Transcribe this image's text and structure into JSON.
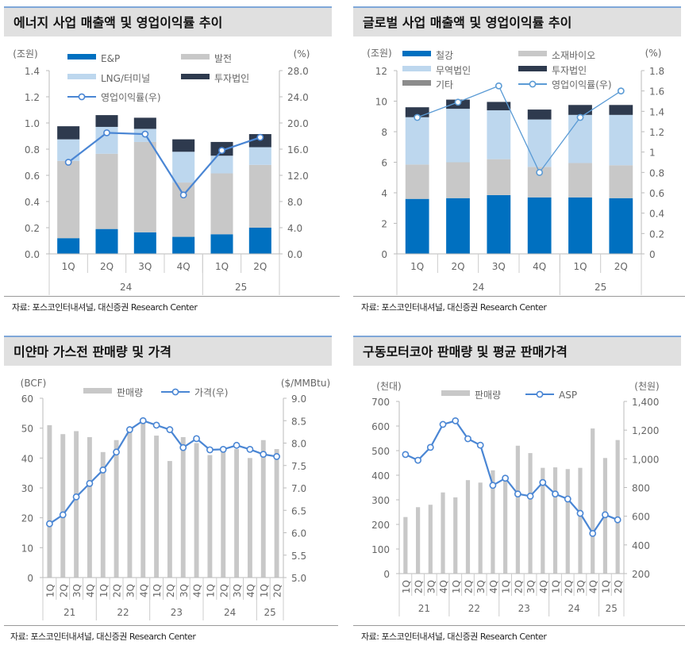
{
  "charts_meta": [
    {
      "title": "에너지 사업 매출액 및 영업이익률 추이",
      "source": "자료: 포스코인터내셔널, 대신증권 Research Center"
    },
    {
      "title": "글로벌 사업 매출액 및 영업이익률 추이",
      "source": "자료: 포스코인터내셔널, 대신증권 Research Center"
    },
    {
      "title": "미얀마 가스전 판매량 및 가격",
      "source": "자료: 포스코인터내셔널, 대신증권 Research Center"
    },
    {
      "title": "구동모터코아 판매량 및 평균 판매가격",
      "source": "자료: 포스코인터내셔널, 대신증권 Research Center"
    }
  ],
  "chart_data": [
    {
      "type": "bar",
      "stacked": true,
      "title": "에너지 사업 매출액 및 영업이익률 추이",
      "categories": [
        "1Q",
        "2Q",
        "3Q",
        "4Q",
        "1Q",
        "2Q"
      ],
      "groups": [
        {
          "label": "24",
          "count": 4
        },
        {
          "label": "25",
          "count": 2
        }
      ],
      "ylabel": "(조원)",
      "y2label": "(%)",
      "ylim": [
        0,
        1.4
      ],
      "y2lim": [
        0,
        28
      ],
      "yticks": [
        "0.0",
        "0.2",
        "0.4",
        "0.6",
        "0.8",
        "1.0",
        "1.2",
        "1.4"
      ],
      "y2ticks": [
        "0.0",
        "4.0",
        "8.0",
        "12.0",
        "16.0",
        "20.0",
        "24.0",
        "28.0"
      ],
      "series": [
        {
          "name": "E&P",
          "color": "#0070c0",
          "values": [
            0.12,
            0.19,
            0.165,
            0.13,
            0.15,
            0.2
          ]
        },
        {
          "name": "발전",
          "color": "#c8c8c8",
          "values": [
            0.59,
            0.575,
            0.69,
            0.415,
            0.465,
            0.48
          ]
        },
        {
          "name": "LNG/터미널",
          "color": "#bdd7ee",
          "values": [
            0.165,
            0.205,
            0.1,
            0.235,
            0.135,
            0.135
          ]
        },
        {
          "name": "투자법인",
          "color": "#2e3a4e",
          "values": [
            0.1,
            0.09,
            0.085,
            0.095,
            0.105,
            0.1
          ]
        }
      ],
      "line": {
        "name": "영업이익률(우)",
        "color": "#4a86d4",
        "values": [
          14.0,
          18.5,
          18.3,
          9.0,
          15.8,
          17.8
        ]
      },
      "legend": "top"
    },
    {
      "type": "bar",
      "stacked": true,
      "title": "글로벌 사업 매출액 및 영업이익률 추이",
      "categories": [
        "1Q",
        "2Q",
        "3Q",
        "4Q",
        "1Q",
        "2Q"
      ],
      "groups": [
        {
          "label": "24",
          "count": 4
        },
        {
          "label": "25",
          "count": 2
        }
      ],
      "ylabel": "(조원)",
      "y2label": "(%)",
      "ylim": [
        0,
        12
      ],
      "y2lim": [
        0,
        1.8
      ],
      "yticks": [
        "0",
        "2",
        "4",
        "6",
        "8",
        "10",
        "12"
      ],
      "y2ticks": [
        "0",
        "0.2",
        "0.4",
        "0.6",
        "0.8",
        "1",
        "1.2",
        "1.4",
        "1.6",
        "1.8"
      ],
      "series": [
        {
          "name": "철강",
          "color": "#0070c0",
          "values": [
            3.6,
            3.65,
            3.85,
            3.7,
            3.7,
            3.65
          ]
        },
        {
          "name": "소재바이오",
          "color": "#c8c8c8",
          "values": [
            2.25,
            2.35,
            2.35,
            2.0,
            2.25,
            2.15
          ]
        },
        {
          "name": "무역법인",
          "color": "#bdd7ee",
          "values": [
            3.1,
            3.5,
            3.2,
            3.1,
            3.15,
            3.3
          ]
        },
        {
          "name": "투자법인",
          "color": "#2e3a4e",
          "values": [
            0.65,
            0.6,
            0.55,
            0.65,
            0.65,
            0.65
          ]
        },
        {
          "name": "기타",
          "color": "#8c8c8c",
          "values": [
            0,
            0,
            0,
            0,
            0,
            0
          ]
        }
      ],
      "line": {
        "name": "영업이익률(우)",
        "color": "#5b9bd5",
        "values": [
          1.34,
          1.49,
          1.65,
          0.8,
          1.34,
          1.6
        ]
      },
      "legend": "top"
    },
    {
      "type": "bar",
      "title": "미얀마 가스전 판매량 및 가격",
      "categories": [
        "1Q",
        "2Q",
        "3Q",
        "4Q",
        "1Q",
        "2Q",
        "3Q",
        "4Q",
        "1Q",
        "2Q",
        "3Q",
        "4Q",
        "1Q",
        "2Q",
        "3Q",
        "4Q",
        "1Q",
        "2Q"
      ],
      "groups": [
        {
          "label": "21",
          "count": 4
        },
        {
          "label": "22",
          "count": 4
        },
        {
          "label": "23",
          "count": 4
        },
        {
          "label": "24",
          "count": 4
        },
        {
          "label": "25",
          "count": 2
        }
      ],
      "ylabel": "(BCF)",
      "y2label": "($/MMBtu)",
      "ylim": [
        0,
        60
      ],
      "y2lim": [
        5,
        9
      ],
      "yticks": [
        "0",
        "10",
        "20",
        "30",
        "40",
        "50",
        "60"
      ],
      "y2ticks": [
        "5.0",
        "5.5",
        "6.0",
        "6.5",
        "7.0",
        "7.5",
        "8.0",
        "8.5",
        "9.0"
      ],
      "series": [
        {
          "name": "판매량",
          "color": "#c8c8c8",
          "values": [
            51,
            48,
            49,
            47,
            42,
            46,
            49,
            52,
            47.5,
            39,
            47,
            45,
            41,
            43,
            43,
            40,
            46,
            43
          ]
        }
      ],
      "line": {
        "name": "가격(우)",
        "color": "#4a86d4",
        "values": [
          6.2,
          6.4,
          6.8,
          7.1,
          7.4,
          7.8,
          8.3,
          8.5,
          8.4,
          8.3,
          7.9,
          8.1,
          7.85,
          7.86,
          7.95,
          7.86,
          7.75,
          7.7
        ]
      },
      "legend": "top"
    },
    {
      "type": "bar",
      "title": "구동모터코아 판매량 및 평균 판매가격",
      "categories": [
        "1Q",
        "2Q",
        "3Q",
        "4Q",
        "1Q",
        "2Q",
        "3Q",
        "4Q",
        "1Q",
        "2Q",
        "3Q",
        "4Q",
        "1Q",
        "2Q",
        "3Q",
        "4Q",
        "1Q",
        "2Q"
      ],
      "groups": [
        {
          "label": "21",
          "count": 4
        },
        {
          "label": "22",
          "count": 4
        },
        {
          "label": "23",
          "count": 4
        },
        {
          "label": "24",
          "count": 4
        },
        {
          "label": "25",
          "count": 2
        }
      ],
      "ylabel": "(천대)",
      "y2label": "(천원)",
      "ylim": [
        0,
        700
      ],
      "y2lim": [
        200,
        1400
      ],
      "yticks": [
        "0",
        "100",
        "200",
        "300",
        "400",
        "500",
        "600",
        "700"
      ],
      "y2ticks": [
        "200",
        "400",
        "600",
        "800",
        "1,000",
        "1,200",
        "1,400"
      ],
      "series": [
        {
          "name": "판매량",
          "color": "#c8c8c8",
          "values": [
            230,
            270,
            280,
            330,
            310,
            380,
            370,
            420,
            385,
            520,
            490,
            430,
            432,
            425,
            430,
            590,
            470,
            543
          ]
        }
      ],
      "line": {
        "name": "ASP",
        "color": "#4a86d4",
        "values": [
          1030,
          990,
          1080,
          1240,
          1265,
          1140,
          1095,
          815,
          865,
          755,
          740,
          835,
          755,
          720,
          620,
          480,
          610,
          575
        ]
      },
      "legend": "top"
    }
  ]
}
